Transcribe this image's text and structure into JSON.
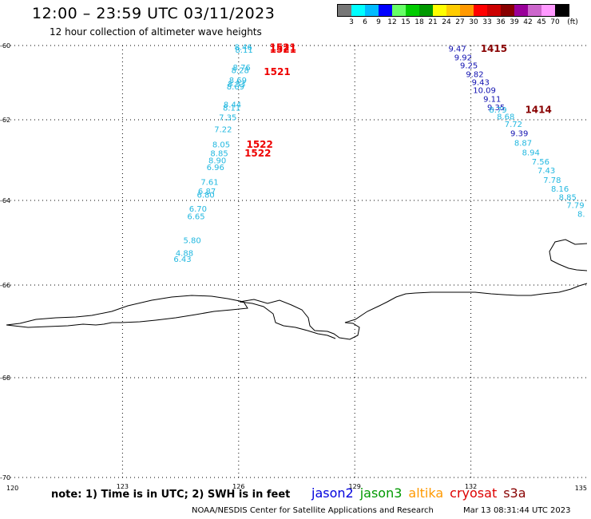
{
  "header": {
    "title": "12:00 – 23:59 UTC 03/11/2023",
    "subtitle": "12 hour collection of altimeter wave heights"
  },
  "legend": {
    "unit_label": "(ft)",
    "ticks": [
      "3",
      "6",
      "9",
      "12",
      "15",
      "18",
      "21",
      "24",
      "27",
      "30",
      "33",
      "36",
      "39",
      "42",
      "45",
      "70"
    ],
    "colors": [
      "#777777",
      "#00ffff",
      "#00bbff",
      "#0000ff",
      "#66ff66",
      "#00cc00",
      "#009900",
      "#ffff00",
      "#ffcc00",
      "#ff9900",
      "#ff0000",
      "#cc0000",
      "#880000",
      "#990099",
      "#cc66cc",
      "#ff99ff",
      "#000000"
    ]
  },
  "axes": {
    "lat_labels": [
      "-60",
      "-62",
      "-64",
      "-66",
      "-68",
      "-70"
    ],
    "lon_labels": [
      "120",
      "123",
      "126",
      "129",
      "132",
      "135"
    ]
  },
  "map_data": {
    "track_left": {
      "color": "#22b8e0",
      "points": [
        {
          "lon": 126.12,
          "lat": -60.05,
          "v": "8.46"
        },
        {
          "lon": 126.14,
          "lat": -60.13,
          "v": "8.11"
        },
        {
          "lon": 126.08,
          "lat": -60.6,
          "v": "8.76"
        },
        {
          "lon": 126.04,
          "lat": -60.68,
          "v": "8.28"
        },
        {
          "lon": 125.98,
          "lat": -60.95,
          "v": "8.69"
        },
        {
          "lon": 125.95,
          "lat": -61.04,
          "v": "8.53"
        },
        {
          "lon": 125.92,
          "lat": -61.12,
          "v": "8.69"
        },
        {
          "lon": 125.84,
          "lat": -61.6,
          "v": "8.44"
        },
        {
          "lon": 125.82,
          "lat": -61.69,
          "v": "8.11"
        },
        {
          "lon": 125.72,
          "lat": -61.95,
          "v": "7.35"
        },
        {
          "lon": 125.6,
          "lat": -62.25,
          "v": "7.22"
        },
        {
          "lon": 125.55,
          "lat": -62.62,
          "v": "8.05"
        },
        {
          "lon": 125.5,
          "lat": -62.84,
          "v": "8.85"
        },
        {
          "lon": 125.45,
          "lat": -63.02,
          "v": "8.90"
        },
        {
          "lon": 125.4,
          "lat": -63.19,
          "v": "6.96"
        },
        {
          "lon": 125.25,
          "lat": -63.55,
          "v": "7.61"
        },
        {
          "lon": 125.18,
          "lat": -63.78,
          "v": "6.87"
        },
        {
          "lon": 125.15,
          "lat": -63.87,
          "v": "6.80"
        },
        {
          "lon": 124.95,
          "lat": -64.21,
          "v": "6.70"
        },
        {
          "lon": 124.9,
          "lat": -64.39,
          "v": "6.65"
        },
        {
          "lon": 124.8,
          "lat": -64.95,
          "v": "5.80"
        },
        {
          "lon": 124.6,
          "lat": -65.25,
          "v": "4.88"
        },
        {
          "lon": 124.55,
          "lat": -65.4,
          "v": "6.43"
        }
      ]
    },
    "track_right": {
      "points": [
        {
          "lon": 131.65,
          "lat": -60.1,
          "v": "9.47",
          "color": "#1010b0"
        },
        {
          "lon": 131.8,
          "lat": -60.33,
          "v": "9.92",
          "color": "#1010b0"
        },
        {
          "lon": 131.95,
          "lat": -60.55,
          "v": "9.25",
          "color": "#1010b0"
        },
        {
          "lon": 132.1,
          "lat": -60.78,
          "v": "9.82",
          "color": "#1010b0"
        },
        {
          "lon": 132.25,
          "lat": -61.0,
          "v": "9.43",
          "color": "#1010b0"
        },
        {
          "lon": 132.35,
          "lat": -61.22,
          "v": "10.09",
          "color": "#1010b0"
        },
        {
          "lon": 132.55,
          "lat": -61.45,
          "v": "9.11",
          "color": "#1010b0"
        },
        {
          "lon": 132.65,
          "lat": -61.68,
          "v": "9.35",
          "color": "#1010b0"
        },
        {
          "lon": 132.7,
          "lat": -61.74,
          "v": "8.79",
          "color": "#22b8e0"
        },
        {
          "lon": 132.9,
          "lat": -61.92,
          "v": "8.68",
          "color": "#22b8e0"
        },
        {
          "lon": 133.1,
          "lat": -62.12,
          "v": "7.72",
          "color": "#22b8e0"
        },
        {
          "lon": 133.25,
          "lat": -62.35,
          "v": "9.39",
          "color": "#1010b0"
        },
        {
          "lon": 133.35,
          "lat": -62.58,
          "v": "8.87",
          "color": "#22b8e0"
        },
        {
          "lon": 133.55,
          "lat": -62.82,
          "v": "8.94",
          "color": "#22b8e0"
        },
        {
          "lon": 133.8,
          "lat": -63.05,
          "v": "7.56",
          "color": "#22b8e0"
        },
        {
          "lon": 133.95,
          "lat": -63.27,
          "v": "7.43",
          "color": "#22b8e0"
        },
        {
          "lon": 134.1,
          "lat": -63.5,
          "v": "7.78",
          "color": "#22b8e0"
        },
        {
          "lon": 134.3,
          "lat": -63.72,
          "v": "8.16",
          "color": "#22b8e0"
        },
        {
          "lon": 134.5,
          "lat": -63.93,
          "v": "8.85",
          "color": "#22b8e0"
        },
        {
          "lon": 134.7,
          "lat": -64.12,
          "v": "7.79",
          "color": "#22b8e0"
        },
        {
          "lon": 134.85,
          "lat": -64.33,
          "v": "8.",
          "color": "#22b8e0"
        }
      ]
    },
    "time_labels": [
      {
        "lon": 126.8,
        "lat": -60.06,
        "t": "1521",
        "color": "#ee0000"
      },
      {
        "lon": 126.8,
        "lat": -60.12,
        "t": "1521",
        "color": "#ee0000"
      },
      {
        "lon": 126.65,
        "lat": -60.72,
        "t": "1521",
        "color": "#ee0000"
      },
      {
        "lon": 126.2,
        "lat": -62.62,
        "t": "1522",
        "color": "#ee0000"
      },
      {
        "lon": 126.15,
        "lat": -62.84,
        "t": "1522",
        "color": "#ee0000"
      },
      {
        "lon": 132.25,
        "lat": -60.1,
        "t": "1415",
        "color": "#880000"
      },
      {
        "lon": 133.4,
        "lat": -61.74,
        "t": "1414",
        "color": "#880000"
      }
    ]
  },
  "note": "note: 1) Time is in UTC; 2) SWH is in feet",
  "satellites": [
    {
      "name": "jason2",
      "color": "#0000dd"
    },
    {
      "name": "jason3",
      "color": "#009900"
    },
    {
      "name": "altika",
      "color": "#ff9900"
    },
    {
      "name": "cryosat",
      "color": "#dd0000"
    },
    {
      "name": "s3a",
      "color": "#880000"
    }
  ],
  "footer": {
    "credit": "NOAA/NESDIS Center for Satellite Applications and Research",
    "timestamp": "Mar 13 08:31:44 UTC 2023"
  }
}
